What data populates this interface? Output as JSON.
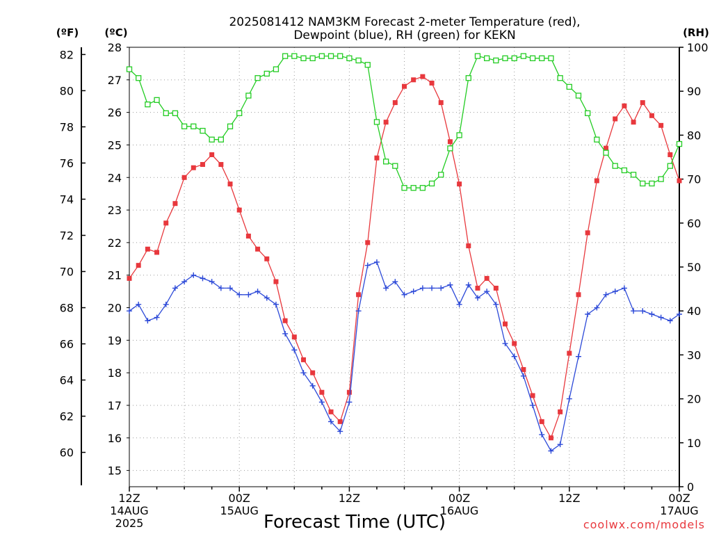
{
  "chart_data": {
    "type": "line",
    "title": "2025081412 NAM3KM Forecast 2-meter Temperature (red),",
    "subtitle": "Dewpoint (blue), RH (green) for KEKN",
    "xlabel": "Forecast Time (UTC)",
    "axis_units": {
      "fahrenheit": "(ºF)",
      "celsius": "(ºC)",
      "rh": "(RH)"
    },
    "credit": "coolwx.com/models",
    "x_hours": [
      0,
      1,
      2,
      3,
      4,
      5,
      6,
      7,
      8,
      9,
      10,
      11,
      12,
      13,
      14,
      15,
      16,
      17,
      18,
      19,
      20,
      21,
      22,
      23,
      24,
      25,
      26,
      27,
      28,
      29,
      30,
      31,
      32,
      33,
      34,
      35,
      36,
      37,
      38,
      39,
      40,
      41,
      42,
      43,
      44,
      45,
      46,
      47,
      48,
      49,
      50,
      51,
      52,
      53,
      54,
      55,
      56,
      57,
      58,
      59,
      60
    ],
    "x_range_hours": [
      0,
      60
    ],
    "x_ticks": [
      {
        "hour": 0,
        "lines": [
          "12Z",
          "14AUG",
          "2025"
        ]
      },
      {
        "hour": 12,
        "lines": [
          "00Z",
          "15AUG"
        ]
      },
      {
        "hour": 24,
        "lines": [
          "12Z"
        ]
      },
      {
        "hour": 36,
        "lines": [
          "00Z",
          "16AUG"
        ]
      },
      {
        "hour": 48,
        "lines": [
          "12Z"
        ]
      },
      {
        "hour": 60,
        "lines": [
          "00Z",
          "17AUG"
        ]
      }
    ],
    "y_left_celsius": {
      "ylim": [
        14.5,
        28.0
      ],
      "ticks": [
        "15",
        "16",
        "17",
        "18",
        "19",
        "20",
        "21",
        "22",
        "23",
        "24",
        "25",
        "26",
        "27",
        "28"
      ]
    },
    "y_left_fahrenheit": {
      "ticks": [
        "60",
        "62",
        "64",
        "66",
        "68",
        "70",
        "72",
        "74",
        "76",
        "78",
        "80",
        "82"
      ]
    },
    "y_right_rh": {
      "ylim": [
        0,
        100
      ],
      "ticks": [
        "0",
        "10",
        "20",
        "30",
        "40",
        "50",
        "60",
        "70",
        "80",
        "90",
        "100"
      ]
    },
    "grid": true,
    "colors": {
      "temperature": "#e8383d",
      "dewpoint": "#2c49d8",
      "rh": "#22cc22",
      "grid": "#9a9a9a"
    },
    "series": [
      {
        "name": "Temperature",
        "marker": "square",
        "axis": "celsius",
        "values": [
          20.9,
          21.3,
          21.8,
          21.7,
          22.6,
          23.2,
          24.0,
          24.3,
          24.4,
          24.7,
          24.4,
          23.8,
          23.0,
          22.2,
          21.8,
          21.5,
          20.8,
          19.6,
          19.1,
          18.4,
          18.0,
          17.4,
          16.8,
          16.5,
          17.4,
          20.4,
          22.0,
          24.6,
          25.7,
          26.3,
          26.8,
          27.0,
          27.1,
          26.9,
          26.3,
          25.1,
          23.8,
          21.9,
          20.6,
          20.9,
          20.6,
          19.5,
          18.9,
          18.1,
          17.3,
          16.5,
          16.0,
          16.8,
          18.6,
          20.4,
          22.3,
          23.9,
          24.9,
          25.8,
          26.2,
          25.7,
          26.3,
          25.9,
          25.6,
          24.7,
          23.9
        ]
      },
      {
        "name": "Dewpoint",
        "marker": "plus",
        "axis": "celsius",
        "values": [
          19.9,
          20.1,
          19.6,
          19.7,
          20.1,
          20.6,
          20.8,
          21.0,
          20.9,
          20.8,
          20.6,
          20.6,
          20.4,
          20.4,
          20.5,
          20.3,
          20.1,
          19.2,
          18.7,
          18.0,
          17.6,
          17.1,
          16.5,
          16.2,
          17.1,
          19.9,
          21.3,
          21.4,
          20.6,
          20.8,
          20.4,
          20.5,
          20.6,
          20.6,
          20.6,
          20.7,
          20.1,
          20.7,
          20.3,
          20.5,
          20.1,
          18.9,
          18.5,
          17.9,
          17.0,
          16.1,
          15.6,
          15.8,
          17.2,
          18.5,
          19.8,
          20.0,
          20.4,
          20.5,
          20.6,
          19.9,
          19.9,
          19.8,
          19.7,
          19.6,
          19.8
        ]
      },
      {
        "name": "RH",
        "marker": "open-square",
        "axis": "rh",
        "values": [
          95,
          93,
          87,
          88,
          85,
          85,
          82,
          82,
          81,
          79,
          79,
          82,
          85,
          89,
          93,
          94,
          95,
          98,
          98,
          97.5,
          97.5,
          98,
          98,
          98,
          97.5,
          97,
          96,
          83,
          74,
          73,
          68,
          68,
          68,
          69,
          71,
          77,
          80,
          93,
          98,
          97.5,
          97,
          97.5,
          97.5,
          98,
          97.5,
          97.5,
          97.5,
          93,
          91,
          89,
          85,
          79,
          76,
          73,
          72,
          71,
          69,
          69,
          70,
          73,
          78
        ]
      }
    ]
  }
}
